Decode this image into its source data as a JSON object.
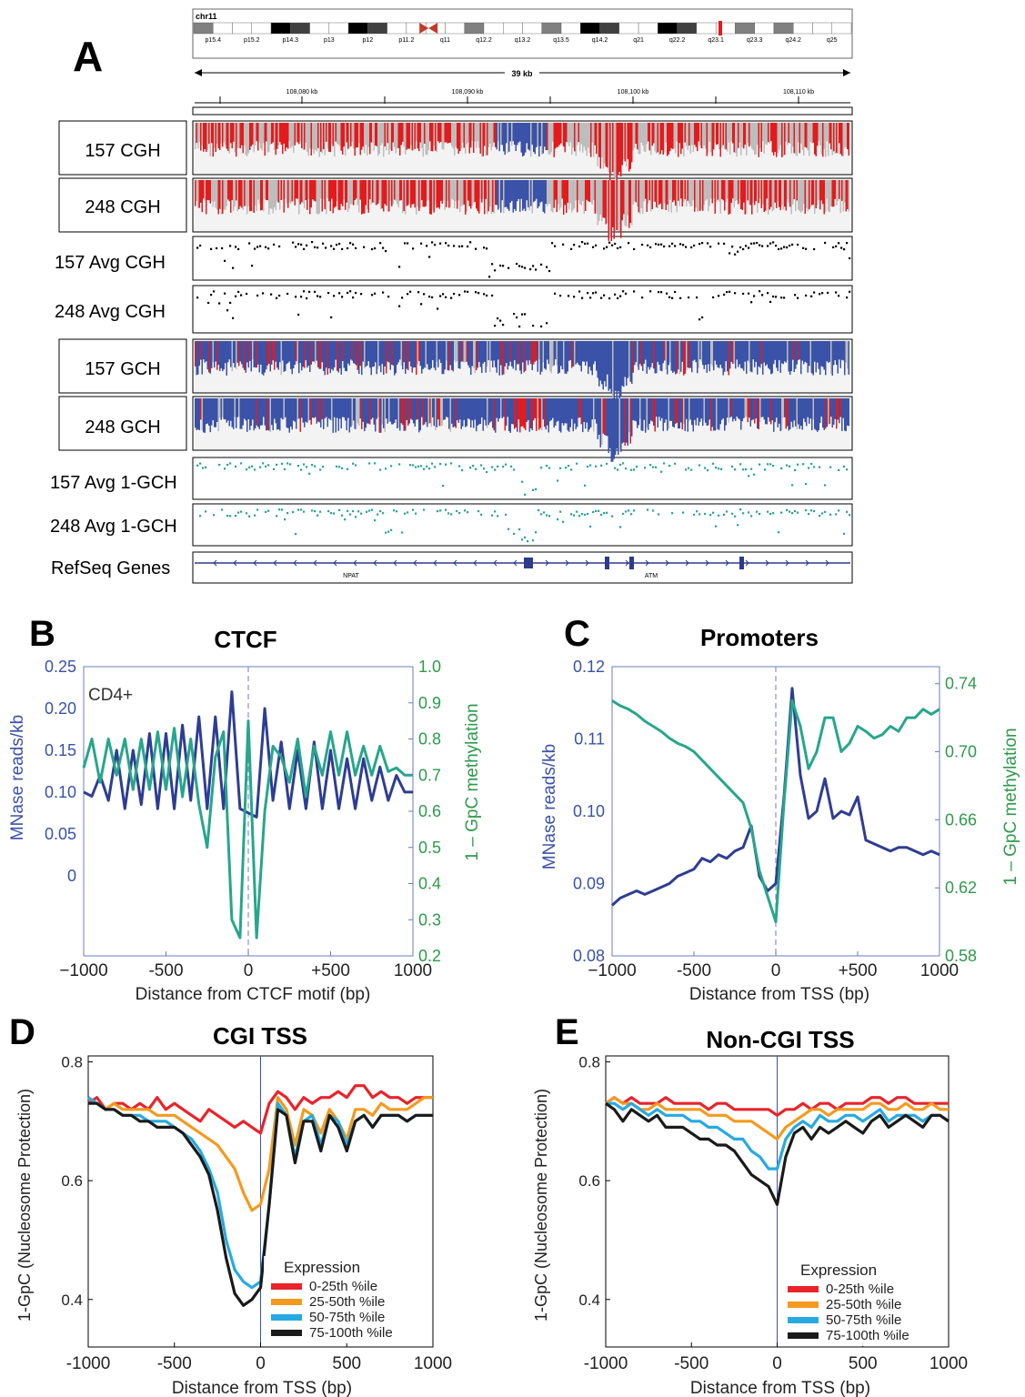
{
  "panel_a": {
    "letter": "A",
    "chrom": "chr11",
    "bands": [
      "p15.4",
      "p15.2",
      "p14.3",
      "p13",
      "p12",
      "p11.2",
      "q11",
      "q12.2",
      "q13.2",
      "q13.5",
      "q14.2",
      "q21",
      "q22.2",
      "q23.1",
      "q23.3",
      "q24.2",
      "q25"
    ],
    "scale_label": "39 kb",
    "coords": [
      "108,080 kb",
      "108,090 kb",
      "108,100 kb",
      "108,110 kb"
    ],
    "track_labels": [
      "157 CGH",
      "248 CGH",
      "157 Avg CGH",
      "248 Avg CGH",
      "157 GCH",
      "248 GCH",
      "157 Avg 1-GCH",
      "248 Avg 1-GCH",
      "RefSeq Genes"
    ],
    "genes": [
      "NPAT",
      "ATM"
    ],
    "colors": {
      "methylated": "#e41a1c",
      "unmethylated": "#3a52a8",
      "nodata": "#bdbdbd",
      "avg_cgh": "#000000",
      "avg_gch": "#2aa198",
      "gene": "#2e3a8c"
    }
  },
  "chart_data": [
    {
      "panel": "B",
      "type": "line",
      "title": "CTCF",
      "annotation": "CD4+",
      "xlabel": "Distance from CTCF motif (bp)",
      "ylabel_left": "MNase reads/kb",
      "ylabel_right": "1 – GpC methylation",
      "xticks": [
        "−1000",
        "-500",
        "0",
        "+500",
        "1000"
      ],
      "yticks_left": [
        "0.25",
        "0.20",
        "0.15",
        "0.10",
        "0.05",
        "0"
      ],
      "yticks_right": [
        "1.0",
        "0.9",
        "0.8",
        "0.7",
        "0.6",
        "0.5",
        "0.4",
        "0.3",
        "0.2"
      ],
      "xlim": [
        -1000,
        1000
      ],
      "ylim_right": [
        0.2,
        1.0
      ],
      "ylim_left": [
        -0.096,
        0.25
      ],
      "series": [
        {
          "axis": "left",
          "color": "#2e3d93",
          "x": [
            -1000,
            -950,
            -900,
            -850,
            -800,
            -750,
            -700,
            -650,
            -600,
            -550,
            -500,
            -450,
            -400,
            -350,
            -300,
            -250,
            -200,
            -150,
            -100,
            -50,
            0,
            50,
            100,
            150,
            200,
            250,
            300,
            350,
            400,
            450,
            500,
            550,
            600,
            650,
            700,
            750,
            800,
            850,
            900,
            950,
            1000
          ],
          "y": [
            0.1,
            0.095,
            0.12,
            0.09,
            0.15,
            0.08,
            0.15,
            0.085,
            0.17,
            0.08,
            0.17,
            0.08,
            0.18,
            0.09,
            0.19,
            0.08,
            0.19,
            0.08,
            0.22,
            0.08,
            0.075,
            0.07,
            0.2,
            0.09,
            0.16,
            0.08,
            0.15,
            0.08,
            0.16,
            0.08,
            0.15,
            0.08,
            0.14,
            0.08,
            0.14,
            0.09,
            0.13,
            0.09,
            0.12,
            0.1,
            0.1
          ]
        },
        {
          "axis": "right",
          "color": "#27a68b",
          "x": [
            -1000,
            -950,
            -900,
            -850,
            -800,
            -750,
            -700,
            -650,
            -600,
            -550,
            -500,
            -450,
            -400,
            -350,
            -300,
            -250,
            -200,
            -150,
            -100,
            -50,
            0,
            50,
            100,
            150,
            200,
            250,
            300,
            350,
            400,
            450,
            500,
            550,
            600,
            650,
            700,
            750,
            800,
            850,
            900,
            950,
            1000
          ],
          "y": [
            0.72,
            0.8,
            0.68,
            0.8,
            0.7,
            0.8,
            0.66,
            0.8,
            0.66,
            0.82,
            0.66,
            0.83,
            0.64,
            0.8,
            0.62,
            0.5,
            0.75,
            0.82,
            0.3,
            0.25,
            0.85,
            0.25,
            0.6,
            0.78,
            0.75,
            0.68,
            0.8,
            0.64,
            0.78,
            0.7,
            0.82,
            0.7,
            0.82,
            0.7,
            0.78,
            0.7,
            0.78,
            0.71,
            0.72,
            0.7,
            0.7
          ]
        }
      ]
    },
    {
      "panel": "C",
      "type": "line",
      "title": "Promoters",
      "xlabel": "Distance from TSS (bp)",
      "ylabel_left": "MNase reads/kb",
      "ylabel_right": "1 – GpC methylation",
      "xticks": [
        "−1000",
        "-500",
        "0",
        "+500",
        "1000"
      ],
      "yticks_left": [
        "0.12",
        "0.11",
        "0.10",
        "0.09",
        "0.08"
      ],
      "yticks_right": [
        "0.74",
        "0.70",
        "0.66",
        "0.62",
        "0.58"
      ],
      "xlim": [
        -1000,
        1000
      ],
      "ylim_left": [
        0.08,
        0.12
      ],
      "ylim_right": [
        0.58,
        0.75
      ],
      "series": [
        {
          "axis": "left",
          "color": "#2e3d93",
          "x": [
            -1000,
            -950,
            -900,
            -850,
            -800,
            -750,
            -700,
            -650,
            -600,
            -550,
            -500,
            -450,
            -400,
            -350,
            -300,
            -250,
            -200,
            -150,
            -100,
            -50,
            0,
            50,
            100,
            150,
            200,
            250,
            300,
            350,
            400,
            450,
            500,
            550,
            600,
            650,
            700,
            750,
            800,
            850,
            900,
            950,
            1000
          ],
          "y": [
            0.087,
            0.088,
            0.0885,
            0.089,
            0.0885,
            0.089,
            0.0895,
            0.09,
            0.091,
            0.0915,
            0.092,
            0.0935,
            0.093,
            0.094,
            0.0935,
            0.0945,
            0.095,
            0.098,
            0.091,
            0.089,
            0.09,
            0.102,
            0.117,
            0.105,
            0.099,
            0.1,
            0.1045,
            0.099,
            0.1,
            0.0995,
            0.102,
            0.096,
            0.0955,
            0.095,
            0.0945,
            0.095,
            0.095,
            0.0945,
            0.094,
            0.0945,
            0.094
          ]
        },
        {
          "axis": "right",
          "color": "#27a68b",
          "x": [
            -1000,
            -950,
            -900,
            -850,
            -800,
            -750,
            -700,
            -650,
            -600,
            -550,
            -500,
            -450,
            -400,
            -350,
            -300,
            -250,
            -200,
            -150,
            -100,
            -50,
            0,
            50,
            100,
            150,
            200,
            250,
            300,
            350,
            400,
            450,
            500,
            550,
            600,
            650,
            700,
            750,
            800,
            850,
            900,
            950,
            1000
          ],
          "y": [
            0.73,
            0.727,
            0.725,
            0.722,
            0.718,
            0.715,
            0.712,
            0.708,
            0.705,
            0.703,
            0.7,
            0.695,
            0.69,
            0.685,
            0.68,
            0.675,
            0.67,
            0.655,
            0.63,
            0.615,
            0.6,
            0.67,
            0.73,
            0.715,
            0.69,
            0.7,
            0.72,
            0.72,
            0.7,
            0.705,
            0.715,
            0.712,
            0.708,
            0.71,
            0.715,
            0.712,
            0.72,
            0.72,
            0.725,
            0.722,
            0.725
          ]
        }
      ]
    },
    {
      "panel": "D",
      "type": "line",
      "title": "CGI TSS",
      "xlabel": "Distance from TSS (bp)",
      "ylabel": "1-GpC (Nucleosome Protection)",
      "xticks": [
        "-1000",
        "-500",
        "0",
        "500",
        "1000"
      ],
      "yticks": [
        "0.8",
        "0.6",
        "0.4"
      ],
      "xlim": [
        -1000,
        1000
      ],
      "ylim": [
        0.32,
        0.81
      ],
      "legend_title": "Expression",
      "x": [
        -1000,
        -950,
        -900,
        -850,
        -800,
        -750,
        -700,
        -650,
        -600,
        -550,
        -500,
        -450,
        -400,
        -350,
        -300,
        -250,
        -200,
        -150,
        -100,
        -50,
        0,
        50,
        100,
        150,
        200,
        250,
        300,
        350,
        400,
        450,
        500,
        550,
        600,
        650,
        700,
        750,
        800,
        850,
        900,
        950,
        1000
      ],
      "series": [
        {
          "name": "0-25th %ile",
          "color": "#e8242a",
          "values": [
            0.73,
            0.74,
            0.72,
            0.73,
            0.73,
            0.72,
            0.73,
            0.72,
            0.74,
            0.72,
            0.73,
            0.72,
            0.71,
            0.7,
            0.72,
            0.71,
            0.7,
            0.69,
            0.7,
            0.69,
            0.68,
            0.73,
            0.75,
            0.74,
            0.72,
            0.74,
            0.73,
            0.74,
            0.74,
            0.75,
            0.74,
            0.76,
            0.76,
            0.74,
            0.75,
            0.74,
            0.74,
            0.73,
            0.74,
            0.74,
            0.74
          ]
        },
        {
          "name": "25-50th %ile",
          "color": "#f39a1f",
          "values": [
            0.74,
            0.73,
            0.72,
            0.73,
            0.72,
            0.72,
            0.72,
            0.72,
            0.71,
            0.71,
            0.71,
            0.7,
            0.69,
            0.68,
            0.67,
            0.66,
            0.64,
            0.62,
            0.58,
            0.55,
            0.56,
            0.62,
            0.74,
            0.72,
            0.66,
            0.72,
            0.71,
            0.68,
            0.72,
            0.7,
            0.67,
            0.72,
            0.72,
            0.71,
            0.73,
            0.72,
            0.72,
            0.72,
            0.73,
            0.74,
            0.74
          ]
        },
        {
          "name": "50-75th %ile",
          "color": "#27aae1",
          "values": [
            0.74,
            0.73,
            0.72,
            0.72,
            0.71,
            0.71,
            0.71,
            0.7,
            0.7,
            0.7,
            0.69,
            0.68,
            0.67,
            0.65,
            0.62,
            0.58,
            0.5,
            0.45,
            0.43,
            0.42,
            0.43,
            0.56,
            0.73,
            0.71,
            0.64,
            0.7,
            0.71,
            0.66,
            0.71,
            0.7,
            0.66,
            0.7,
            0.71,
            0.69,
            0.71,
            0.71,
            0.71,
            0.7,
            0.71,
            0.71,
            0.71
          ]
        },
        {
          "name": "75-100th %ile",
          "color": "#1a1a1a",
          "values": [
            0.73,
            0.73,
            0.72,
            0.72,
            0.71,
            0.71,
            0.7,
            0.7,
            0.69,
            0.69,
            0.69,
            0.68,
            0.66,
            0.64,
            0.61,
            0.55,
            0.47,
            0.41,
            0.39,
            0.4,
            0.42,
            0.56,
            0.72,
            0.71,
            0.63,
            0.7,
            0.7,
            0.65,
            0.71,
            0.69,
            0.65,
            0.7,
            0.71,
            0.69,
            0.71,
            0.71,
            0.71,
            0.7,
            0.71,
            0.71,
            0.71
          ]
        }
      ]
    },
    {
      "panel": "E",
      "type": "line",
      "title": "Non-CGI TSS",
      "xlabel": "Distance from TSS (bp)",
      "ylabel": "1-GpC (Nucleosome Protection)",
      "xticks": [
        "-1000",
        "-500",
        "0",
        "500",
        "1000"
      ],
      "yticks": [
        "0.8",
        "0.6",
        "0.4"
      ],
      "xlim": [
        -1000,
        1000
      ],
      "ylim": [
        0.32,
        0.81
      ],
      "legend_title": "Expression",
      "x": [
        -1000,
        -950,
        -900,
        -850,
        -800,
        -750,
        -700,
        -650,
        -600,
        -550,
        -500,
        -450,
        -400,
        -350,
        -300,
        -250,
        -200,
        -150,
        -100,
        -50,
        0,
        50,
        100,
        150,
        200,
        250,
        300,
        350,
        400,
        450,
        500,
        550,
        600,
        650,
        700,
        750,
        800,
        850,
        900,
        950,
        1000
      ],
      "series": [
        {
          "name": "0-25th %ile",
          "color": "#e8242a",
          "values": [
            0.73,
            0.74,
            0.73,
            0.74,
            0.73,
            0.73,
            0.73,
            0.74,
            0.73,
            0.73,
            0.73,
            0.73,
            0.72,
            0.73,
            0.73,
            0.72,
            0.72,
            0.72,
            0.72,
            0.72,
            0.71,
            0.72,
            0.72,
            0.73,
            0.72,
            0.73,
            0.73,
            0.72,
            0.73,
            0.73,
            0.73,
            0.74,
            0.74,
            0.73,
            0.74,
            0.74,
            0.73,
            0.73,
            0.73,
            0.73,
            0.73
          ]
        },
        {
          "name": "25-50th %ile",
          "color": "#f39a1f",
          "values": [
            0.73,
            0.74,
            0.73,
            0.73,
            0.72,
            0.72,
            0.73,
            0.72,
            0.72,
            0.72,
            0.72,
            0.72,
            0.71,
            0.71,
            0.71,
            0.7,
            0.7,
            0.7,
            0.69,
            0.68,
            0.67,
            0.69,
            0.7,
            0.71,
            0.72,
            0.72,
            0.71,
            0.72,
            0.72,
            0.72,
            0.72,
            0.73,
            0.73,
            0.72,
            0.72,
            0.73,
            0.72,
            0.72,
            0.73,
            0.72,
            0.72
          ]
        },
        {
          "name": "50-75th %ile",
          "color": "#27aae1",
          "values": [
            0.73,
            0.73,
            0.72,
            0.73,
            0.72,
            0.71,
            0.72,
            0.71,
            0.71,
            0.71,
            0.7,
            0.7,
            0.69,
            0.69,
            0.68,
            0.67,
            0.67,
            0.65,
            0.64,
            0.62,
            0.62,
            0.67,
            0.69,
            0.7,
            0.69,
            0.71,
            0.7,
            0.7,
            0.71,
            0.71,
            0.7,
            0.71,
            0.72,
            0.7,
            0.71,
            0.71,
            0.71,
            0.7,
            0.71,
            0.71,
            0.7
          ]
        },
        {
          "name": "75-100th %ile",
          "color": "#1a1a1a",
          "values": [
            0.73,
            0.72,
            0.7,
            0.72,
            0.71,
            0.7,
            0.71,
            0.69,
            0.69,
            0.69,
            0.68,
            0.67,
            0.67,
            0.66,
            0.66,
            0.65,
            0.63,
            0.61,
            0.6,
            0.59,
            0.56,
            0.64,
            0.68,
            0.69,
            0.67,
            0.69,
            0.68,
            0.69,
            0.7,
            0.69,
            0.68,
            0.7,
            0.71,
            0.69,
            0.7,
            0.71,
            0.7,
            0.69,
            0.71,
            0.71,
            0.7
          ]
        }
      ]
    }
  ]
}
